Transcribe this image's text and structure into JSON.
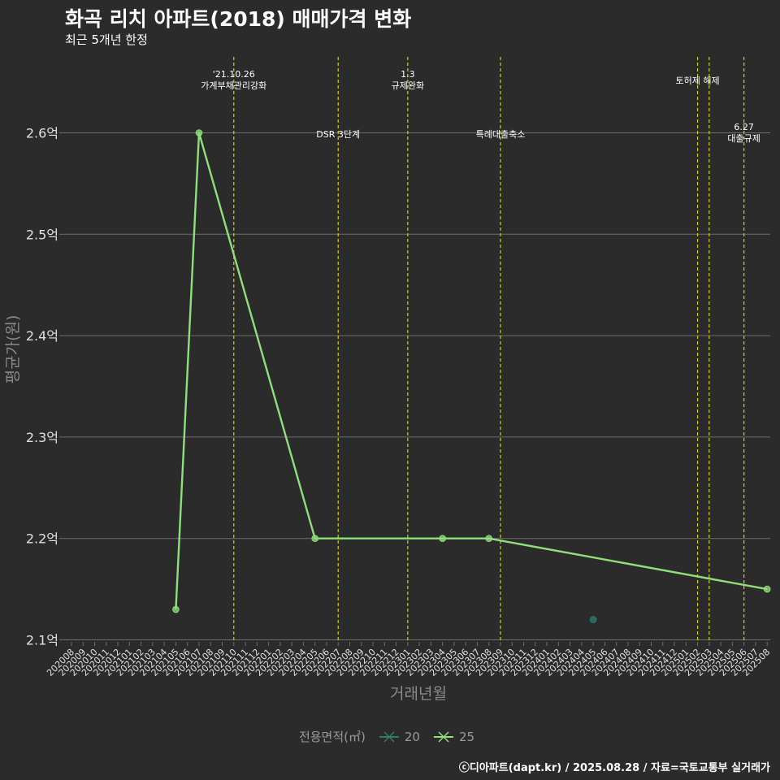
{
  "header": {
    "title": "화곡 리치 아파트(2018) 매매가격 변화",
    "subtitle": "최근 5개년 한정"
  },
  "footer": {
    "credit": "ⓒ디아파트(dapt.kr) / 2025.08.28 / 자료=국토교통부 실거래가"
  },
  "colors": {
    "background": "#2b2b2b",
    "grid": "#6e6e6e",
    "event_line": "#d4d400",
    "series_20": "#2a7f74",
    "series_25": "#8fe07a",
    "axis_text": "#e0e0e0",
    "axis_title": "#8a8a8a"
  },
  "legend": {
    "title": "전용면적(㎡)",
    "items": [
      {
        "label": "20",
        "color": "#2a7f74"
      },
      {
        "label": "25",
        "color": "#8fe07a"
      }
    ]
  },
  "chart_data": {
    "type": "line",
    "title": "화곡 리치 아파트(2018) 매매가격 변화",
    "xlabel": "거래년월",
    "ylabel": "평균가(원)",
    "ylim": [
      2.1,
      2.65
    ],
    "y_ticks": [
      "2.1억",
      "2.2억",
      "2.3억",
      "2.4억",
      "2.5억",
      "2.6억"
    ],
    "y_tick_values": [
      2.1,
      2.2,
      2.3,
      2.4,
      2.5,
      2.6
    ],
    "categories": [
      "202008",
      "202009",
      "202010",
      "202011",
      "202012",
      "202101",
      "202102",
      "202103",
      "202104",
      "202105",
      "202106",
      "202107",
      "202108",
      "202109",
      "202110",
      "202111",
      "202112",
      "202201",
      "202202",
      "202203",
      "202204",
      "202205",
      "202206",
      "202207",
      "202208",
      "202209",
      "202210",
      "202211",
      "202212",
      "202301",
      "202302",
      "202303",
      "202304",
      "202305",
      "202306",
      "202307",
      "202308",
      "202309",
      "202310",
      "202311",
      "202312",
      "202401",
      "202402",
      "202403",
      "202404",
      "202405",
      "202406",
      "202407",
      "202408",
      "202409",
      "202410",
      "202411",
      "202412",
      "202501",
      "202502",
      "202503",
      "202504",
      "202505",
      "202506",
      "202507",
      "202508"
    ],
    "series": [
      {
        "name": "20",
        "line": false,
        "points": [
          {
            "x": "202405",
            "y": 2.12
          }
        ]
      },
      {
        "name": "25",
        "line": true,
        "points": [
          {
            "x": "202105",
            "y": 2.13
          },
          {
            "x": "202107",
            "y": 2.6
          },
          {
            "x": "202205",
            "y": 2.2
          },
          {
            "x": "202304",
            "y": 2.2
          },
          {
            "x": "202308",
            "y": 2.2
          },
          {
            "x": "202508",
            "y": 2.15
          }
        ]
      }
    ],
    "events": [
      {
        "x": "202110",
        "label": "'21.10.26\n가계부채관리강화",
        "level": "top"
      },
      {
        "x": "202207",
        "label": "DSR 3단계",
        "level": "mid"
      },
      {
        "x": "202301",
        "label": "1.3\n규제완화",
        "level": "top"
      },
      {
        "x": "202309",
        "label": "특례대출축소",
        "level": "mid"
      },
      {
        "x": "202502",
        "label": "토허제 해제",
        "level": "top"
      },
      {
        "x": "202503",
        "label": "",
        "level": "none"
      },
      {
        "x": "202506",
        "label": "6.27\n대출규제",
        "level": "mid"
      }
    ]
  }
}
